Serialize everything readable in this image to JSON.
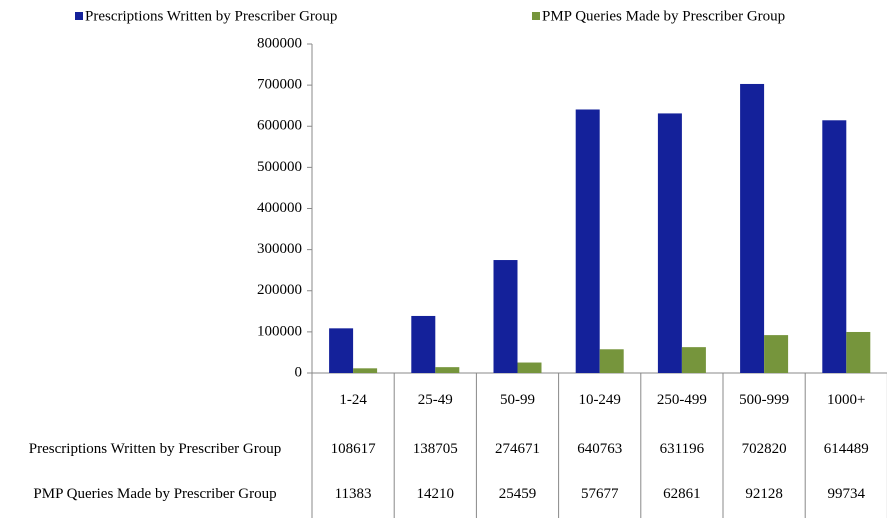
{
  "chart_data": {
    "type": "bar",
    "categories": [
      "1-24",
      "25-49",
      "50-99",
      "10-249",
      "250-499",
      "500-999",
      "1000+"
    ],
    "series": [
      {
        "name": "Prescriptions Written by Prescriber Group",
        "color": "#14219a",
        "values": [
          108617,
          138705,
          274671,
          640763,
          631196,
          702820,
          614489
        ]
      },
      {
        "name": "PMP Queries Made by Prescriber Group",
        "color": "#76953c",
        "values": [
          11383,
          14210,
          25459,
          57677,
          62861,
          92128,
          99734
        ]
      }
    ],
    "ylim": [
      0,
      800000
    ],
    "yticks": [
      0,
      100000,
      200000,
      300000,
      400000,
      500000,
      600000,
      700000,
      800000
    ],
    "grid": false,
    "legend": "top"
  }
}
